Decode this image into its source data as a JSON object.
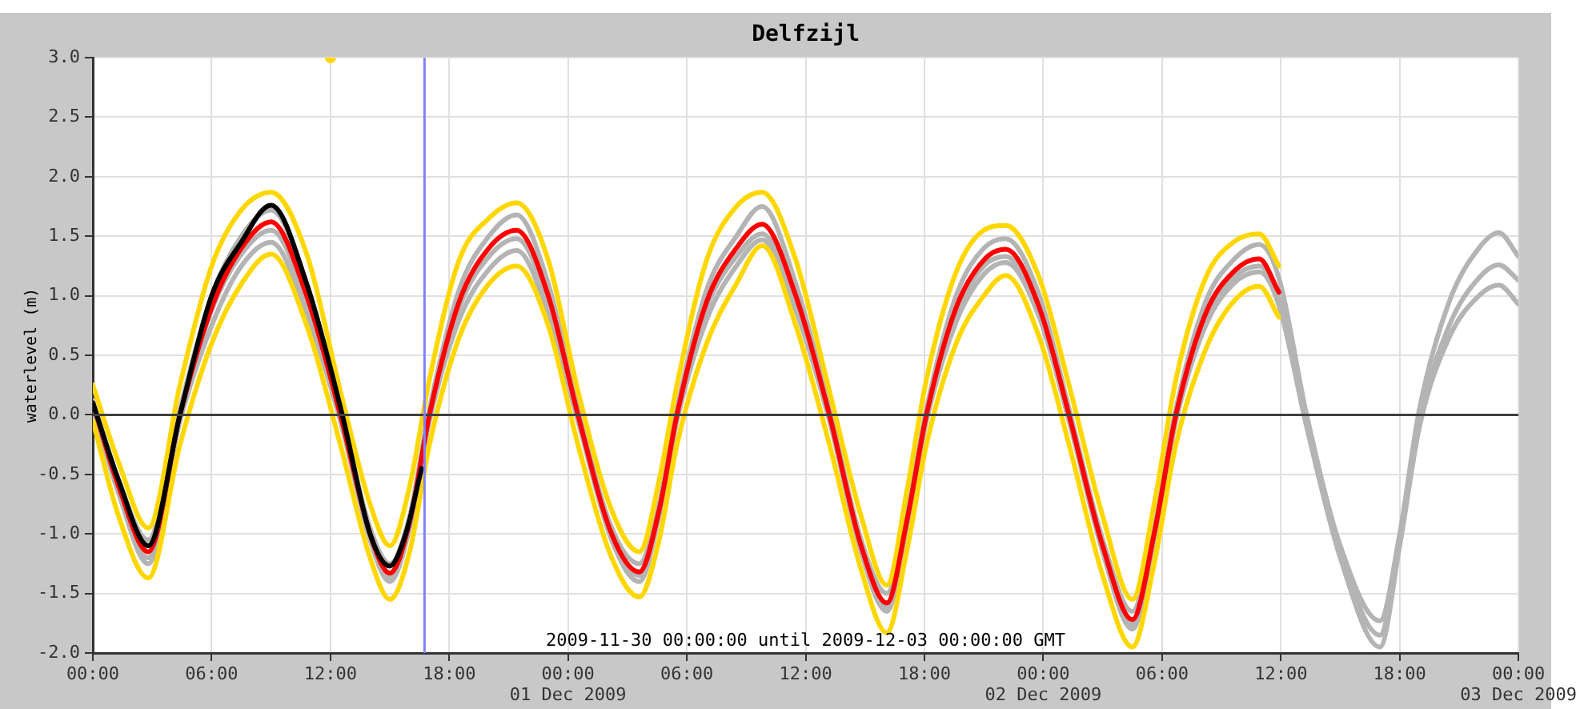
{
  "chart_data": {
    "type": "line",
    "title": "Delfzijl",
    "ylabel": "waterlevel (m)",
    "annotations": [
      "2009-11-30 00:00:00 until 2009-12-03 00:00:00 GMT"
    ],
    "x": [
      "2009-11-30T00:00",
      "2009-11-30T01:18",
      "2009-11-30T02:48",
      "2009-11-30T04:24",
      "2009-11-30T06:00",
      "2009-11-30T07:30",
      "2009-11-30T09:00",
      "2009-11-30T10:48",
      "2009-11-30T12:30",
      "2009-11-30T14:00",
      "2009-11-30T15:00",
      "2009-11-30T16:00",
      "2009-11-30T17:00",
      "2009-11-30T18:30",
      "2009-11-30T20:00",
      "2009-11-30T21:24",
      "2009-11-30T23:00",
      "2009-12-01T00:30",
      "2009-12-01T02:12",
      "2009-12-01T03:36",
      "2009-12-01T04:36",
      "2009-12-01T05:30",
      "2009-12-01T07:00",
      "2009-12-01T08:30",
      "2009-12-01T09:48",
      "2009-12-01T11:30",
      "2009-12-01T13:12",
      "2009-12-01T14:48",
      "2009-12-01T16:06",
      "2009-12-01T17:06",
      "2009-12-01T18:06",
      "2009-12-01T19:36",
      "2009-12-01T21:00",
      "2009-12-01T22:06",
      "2009-12-01T23:48",
      "2009-12-02T01:18",
      "2009-12-02T03:00",
      "2009-12-02T04:30",
      "2009-12-02T05:36",
      "2009-12-02T06:42",
      "2009-12-02T08:12",
      "2009-12-02T09:36",
      "2009-12-02T10:54",
      "2009-12-02T11:54"
    ],
    "series": [
      {
        "color": "#b4b4b4",
        "x": [
          "2009-11-30T00:00",
          "2009-11-30T01:18",
          "2009-11-30T02:48",
          "2009-11-30T04:24",
          "2009-11-30T06:00",
          "2009-11-30T07:30",
          "2009-11-30T09:00",
          "2009-11-30T10:48",
          "2009-11-30T12:30",
          "2009-11-30T14:00",
          "2009-11-30T15:00",
          "2009-11-30T16:00",
          "2009-11-30T17:00",
          "2009-11-30T18:30",
          "2009-11-30T20:00",
          "2009-11-30T21:24",
          "2009-11-30T23:00",
          "2009-12-01T00:30",
          "2009-12-01T02:12",
          "2009-12-01T03:36",
          "2009-12-01T04:36",
          "2009-12-01T05:30",
          "2009-12-01T07:00",
          "2009-12-01T08:30",
          "2009-12-01T09:48",
          "2009-12-01T11:30",
          "2009-12-01T13:12",
          "2009-12-01T14:48",
          "2009-12-01T16:06",
          "2009-12-01T17:06",
          "2009-12-01T18:06",
          "2009-12-01T19:36",
          "2009-12-01T21:00",
          "2009-12-01T22:06",
          "2009-12-01T23:48",
          "2009-12-02T01:18",
          "2009-12-02T03:00",
          "2009-12-02T04:30",
          "2009-12-02T05:36",
          "2009-12-02T06:42",
          "2009-12-02T08:12",
          "2009-12-02T09:36",
          "2009-12-02T10:54",
          "2009-12-02T11:54",
          "2009-12-02T13:18",
          "2009-12-02T15:00",
          "2009-12-02T17:00",
          "2009-12-02T18:00",
          "2009-12-02T19:00",
          "2009-12-02T20:30",
          "2009-12-02T22:00",
          "2009-12-02T23:00",
          "2009-12-03T00:00"
        ],
        "values": [
          0.12,
          -0.55,
          -1.05,
          0.05,
          1.0,
          1.5,
          1.72,
          1.1,
          0.05,
          -0.95,
          -1.25,
          -0.85,
          0.05,
          1.05,
          1.5,
          1.68,
          1.1,
          0.05,
          -0.95,
          -1.25,
          -0.75,
          0.05,
          1.05,
          1.5,
          1.75,
          1.1,
          0.05,
          -1.05,
          -1.5,
          -0.85,
          0.05,
          1.0,
          1.4,
          1.48,
          1.0,
          0.05,
          -1.05,
          -1.65,
          -0.95,
          0.05,
          0.95,
          1.3,
          1.43,
          1.15,
          0,
          -1.1,
          -1.73,
          -1.0,
          0.05,
          0.95,
          1.4,
          1.53,
          1.33
        ]
      },
      {
        "color": "#b4b4b4",
        "x": [
          "2009-11-30T00:00",
          "2009-11-30T01:18",
          "2009-11-30T02:48",
          "2009-11-30T04:24",
          "2009-11-30T06:00",
          "2009-11-30T07:30",
          "2009-11-30T09:00",
          "2009-11-30T10:48",
          "2009-11-30T12:30",
          "2009-11-30T14:00",
          "2009-11-30T15:00",
          "2009-11-30T16:00",
          "2009-11-30T17:00",
          "2009-11-30T18:30",
          "2009-11-30T20:00",
          "2009-11-30T21:24",
          "2009-11-30T23:00",
          "2009-12-01T00:30",
          "2009-12-01T02:12",
          "2009-12-01T03:36",
          "2009-12-01T04:36",
          "2009-12-01T05:30",
          "2009-12-01T07:00",
          "2009-12-01T08:30",
          "2009-12-01T09:48",
          "2009-12-01T11:30",
          "2009-12-01T13:12",
          "2009-12-01T14:48",
          "2009-12-01T16:06",
          "2009-12-01T17:06",
          "2009-12-01T18:06",
          "2009-12-01T19:36",
          "2009-12-01T21:00",
          "2009-12-01T22:06",
          "2009-12-01T23:48",
          "2009-12-02T01:18",
          "2009-12-02T03:00",
          "2009-12-02T04:30",
          "2009-12-02T05:36",
          "2009-12-02T06:42",
          "2009-12-02T08:12",
          "2009-12-02T09:36",
          "2009-12-02T10:54",
          "2009-12-02T11:54",
          "2009-12-02T13:18",
          "2009-12-02T15:00",
          "2009-12-02T17:00",
          "2009-12-02T18:00",
          "2009-12-02T19:00",
          "2009-12-02T20:30",
          "2009-12-02T22:00",
          "2009-12-02T23:00",
          "2009-12-03T00:00"
        ],
        "values": [
          0.08,
          -0.62,
          -1.2,
          -0.02,
          0.88,
          1.35,
          1.55,
          0.95,
          -0.02,
          -1.02,
          -1.37,
          -0.92,
          -0.02,
          0.9,
          1.33,
          1.48,
          0.95,
          -0.02,
          -1.02,
          -1.35,
          -0.82,
          -0.02,
          0.9,
          1.33,
          1.52,
          0.95,
          -0.02,
          -1.12,
          -1.62,
          -0.92,
          -0.02,
          0.85,
          1.25,
          1.33,
          0.87,
          -0.02,
          -1.12,
          -1.76,
          -1.02,
          -0.02,
          0.8,
          1.15,
          1.25,
          0.98,
          -0.05,
          -1.15,
          -1.85,
          -1.05,
          -0.05,
          0.75,
          1.15,
          1.26,
          1.13
        ]
      },
      {
        "color": "#b4b4b4",
        "x": [
          "2009-11-30T00:00",
          "2009-11-30T01:18",
          "2009-11-30T02:48",
          "2009-11-30T04:24",
          "2009-11-30T06:00",
          "2009-11-30T07:30",
          "2009-11-30T09:00",
          "2009-11-30T10:48",
          "2009-11-30T12:30",
          "2009-11-30T14:00",
          "2009-11-30T15:00",
          "2009-11-30T16:00",
          "2009-11-30T17:00",
          "2009-11-30T18:30",
          "2009-11-30T20:00",
          "2009-11-30T21:24",
          "2009-11-30T23:00",
          "2009-12-01T00:30",
          "2009-12-01T02:12",
          "2009-12-01T03:36",
          "2009-12-01T04:36",
          "2009-12-01T05:30",
          "2009-12-01T07:00",
          "2009-12-01T08:30",
          "2009-12-01T09:48",
          "2009-12-01T11:30",
          "2009-12-01T13:12",
          "2009-12-01T14:48",
          "2009-12-01T16:06",
          "2009-12-01T17:06",
          "2009-12-01T18:06",
          "2009-12-01T19:36",
          "2009-12-01T21:00",
          "2009-12-01T22:06",
          "2009-12-01T23:48",
          "2009-12-02T01:18",
          "2009-12-02T03:00",
          "2009-12-02T04:30",
          "2009-12-02T05:36",
          "2009-12-02T06:42",
          "2009-12-02T08:12",
          "2009-12-02T09:36",
          "2009-12-02T10:54",
          "2009-12-02T11:54",
          "2009-12-02T13:18",
          "2009-12-02T15:00",
          "2009-12-02T17:00",
          "2009-12-02T18:00",
          "2009-12-02T19:00",
          "2009-12-02T20:30",
          "2009-12-02T22:00",
          "2009-12-02T23:00",
          "2009-12-03T00:00"
        ],
        "values": [
          0.05,
          -0.66,
          -1.25,
          -0.05,
          0.75,
          1.25,
          1.45,
          0.85,
          -0.05,
          -1.05,
          -1.4,
          -0.95,
          -0.05,
          0.8,
          1.22,
          1.38,
          0.85,
          -0.05,
          -1.05,
          -1.4,
          -0.85,
          -0.05,
          0.8,
          1.25,
          1.47,
          0.88,
          -0.05,
          -1.15,
          -1.65,
          -0.95,
          -0.05,
          0.78,
          1.18,
          1.28,
          0.82,
          -0.05,
          -1.15,
          -1.8,
          -1.05,
          -0.05,
          0.75,
          1.1,
          1.2,
          0.92,
          -0.1,
          -1.2,
          -1.95,
          -1.1,
          -0.1,
          0.65,
          1.0,
          1.09,
          0.93
        ]
      },
      {
        "color": "#ffd700",
        "values": [
          0.25,
          -0.4,
          -0.95,
          0.25,
          1.25,
          1.72,
          1.87,
          1.35,
          0.2,
          -0.75,
          -1.1,
          -0.6,
          0.3,
          1.3,
          1.65,
          1.78,
          1.3,
          0.2,
          -0.8,
          -1.15,
          -0.55,
          0.25,
          1.3,
          1.75,
          1.87,
          1.3,
          0.2,
          -0.85,
          -1.43,
          -0.65,
          0.3,
          1.2,
          1.55,
          1.59,
          1.15,
          0.25,
          -0.85,
          -1.55,
          -0.75,
          0.3,
          1.15,
          1.45,
          1.52,
          1.25
        ]
      },
      {
        "color": "#ffd700",
        "values": [
          -0.05,
          -0.85,
          -1.37,
          -0.25,
          0.6,
          1.1,
          1.35,
          0.75,
          -0.25,
          -1.2,
          -1.55,
          -1.15,
          -0.25,
          0.65,
          1.1,
          1.25,
          0.75,
          -0.25,
          -1.2,
          -1.53,
          -1.05,
          -0.25,
          0.6,
          1.1,
          1.42,
          0.75,
          -0.25,
          -1.3,
          -1.83,
          -1.15,
          -0.25,
          0.6,
          1.0,
          1.17,
          0.65,
          -0.25,
          -1.35,
          -1.95,
          -1.25,
          -0.25,
          0.55,
          0.95,
          1.08,
          0.82
        ]
      },
      {
        "type": "scatter",
        "marker": "circle",
        "color": "#ffd700",
        "x": [
          "2009-11-30T12:00"
        ],
        "values": [
          3.0
        ]
      },
      {
        "color": "#ff0000",
        "values": [
          0.1,
          -0.6,
          -1.15,
          0,
          0.9,
          1.4,
          1.62,
          1.0,
          0,
          -1.0,
          -1.33,
          -0.9,
          0,
          0.95,
          1.4,
          1.55,
          1.0,
          0,
          -1.0,
          -1.32,
          -0.8,
          0,
          0.95,
          1.4,
          1.6,
          1.0,
          0,
          -1.1,
          -1.58,
          -0.9,
          0,
          0.9,
          1.3,
          1.39,
          0.9,
          0,
          -1.1,
          -1.72,
          -1.0,
          0,
          0.85,
          1.2,
          1.31,
          1.03
        ]
      },
      {
        "color": "#000000",
        "x": [
          "2009-11-30T00:00",
          "2009-11-30T01:18",
          "2009-11-30T02:48",
          "2009-11-30T04:24",
          "2009-11-30T06:00",
          "2009-11-30T07:30",
          "2009-11-30T09:00",
          "2009-11-30T10:48",
          "2009-11-30T12:36",
          "2009-11-30T14:00",
          "2009-11-30T15:00",
          "2009-11-30T15:48",
          "2009-11-30T16:36"
        ],
        "values": [
          0.1,
          -0.55,
          -1.1,
          0,
          1.0,
          1.45,
          1.76,
          1.1,
          0,
          -1.0,
          -1.27,
          -1.0,
          -0.45
        ]
      }
    ],
    "xlim": [
      "2009-11-30T00:00",
      "2009-12-03T00:00"
    ],
    "xticks": [
      {
        "value": "2009-11-30T00:00",
        "label": "00:00"
      },
      {
        "value": "2009-11-30T06:00",
        "label": "06:00"
      },
      {
        "value": "2009-11-30T12:00",
        "label": "12:00"
      },
      {
        "value": "2009-11-30T18:00",
        "label": "18:00"
      },
      {
        "value": "2009-12-01T00:00",
        "label": "00:00\n01 Dec 2009"
      },
      {
        "value": "2009-12-01T06:00",
        "label": "06:00"
      },
      {
        "value": "2009-12-01T12:00",
        "label": "12:00"
      },
      {
        "value": "2009-12-01T18:00",
        "label": "18:00"
      },
      {
        "value": "2009-12-02T00:00",
        "label": "00:00\n02 Dec 2009"
      },
      {
        "value": "2009-12-02T06:00",
        "label": "06:00"
      },
      {
        "value": "2009-12-02T12:00",
        "label": "12:00"
      },
      {
        "value": "2009-12-02T18:00",
        "label": "18:00"
      },
      {
        "value": "2009-12-03T00:00",
        "label": "00:00\n03 Dec 2009"
      }
    ],
    "ylim": [
      -2,
      3
    ],
    "yticks": [
      {
        "value": -2,
        "label": "-2.0"
      },
      {
        "value": -1.5,
        "label": "-1.5"
      },
      {
        "value": -1,
        "label": "-1.0"
      },
      {
        "value": -0.5,
        "label": "-0.5"
      },
      {
        "value": 0,
        "label": "0.0"
      },
      {
        "value": 0.5,
        "label": "0.5"
      },
      {
        "value": 1,
        "label": "1.0"
      },
      {
        "value": 1.5,
        "label": "1.5"
      },
      {
        "value": 2,
        "label": "2.0"
      },
      {
        "value": 2.5,
        "label": "2.5"
      },
      {
        "value": 3,
        "label": "3.0"
      }
    ],
    "ref_lines": [
      {
        "axis": "y",
        "value": 0,
        "color": "#404040"
      },
      {
        "axis": "x",
        "value": "2009-11-30T16:45",
        "color": "#8080ff"
      }
    ],
    "grid": true,
    "legend": false,
    "marker": "none",
    "line_style": "solid"
  }
}
